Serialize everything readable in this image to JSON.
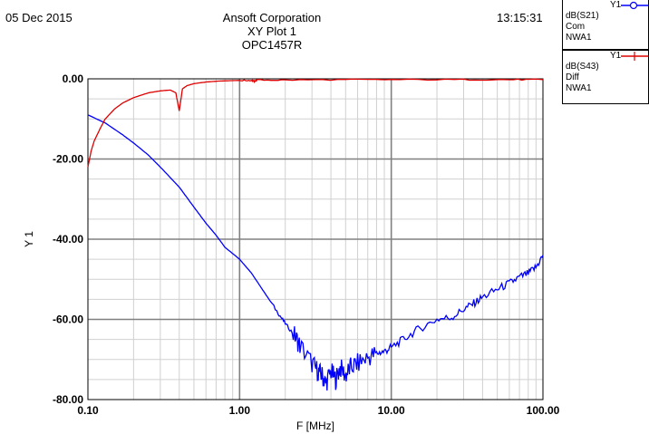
{
  "header": {
    "date": "05 Dec 2015",
    "title_lines": [
      "Ansoft Corporation",
      "XY Plot 1",
      "OPC1457R"
    ],
    "time": "13:15:31"
  },
  "legend": [
    {
      "axis": "Y1",
      "lines": [
        "dB(S21)",
        "Com",
        "NWA1"
      ],
      "color": "#0000ff",
      "marker": "circle"
    },
    {
      "axis": "Y1",
      "lines": [
        "dB(S43)",
        "Diff",
        "NWA1"
      ],
      "color": "#dd0000",
      "marker": "cross"
    }
  ],
  "chart_data": {
    "type": "line",
    "x_scale": "log",
    "xlabel": "F [MHz]",
    "ylabel": "Y 1",
    "xlim": [
      0.1,
      100
    ],
    "ylim": [
      -80,
      0
    ],
    "x_ticks": [
      "0.10",
      "1.00",
      "10.00",
      "100.00"
    ],
    "y_ticks": [
      "0.00",
      "-20.00",
      "-40.00",
      "-60.00",
      "-80.00"
    ],
    "grid": true,
    "series": [
      {
        "name": "dB(S21) Com NWA1",
        "color": "#0000ff",
        "points": [
          [
            0.1,
            -9
          ],
          [
            0.13,
            -11
          ],
          [
            0.17,
            -14
          ],
          [
            0.2,
            -16
          ],
          [
            0.25,
            -19
          ],
          [
            0.3,
            -22
          ],
          [
            0.4,
            -27
          ],
          [
            0.5,
            -32
          ],
          [
            0.6,
            -36
          ],
          [
            0.7,
            -39
          ],
          [
            0.8,
            -42
          ],
          [
            1.0,
            -45
          ],
          [
            1.2,
            -48.5
          ],
          [
            1.5,
            -54
          ],
          [
            1.8,
            -58.5
          ],
          [
            2.0,
            -61
          ],
          [
            2.3,
            -64
          ],
          [
            2.5,
            -66.5
          ],
          [
            3.0,
            -71
          ],
          [
            3.3,
            -73
          ],
          [
            3.5,
            -74
          ],
          [
            3.7,
            -76
          ],
          [
            4.0,
            -73
          ],
          [
            4.3,
            -75
          ],
          [
            4.6,
            -72
          ],
          [
            5.0,
            -74
          ],
          [
            5.4,
            -72
          ],
          [
            6.0,
            -71
          ],
          [
            7.0,
            -69.5
          ],
          [
            8.0,
            -68.5
          ],
          [
            9.0,
            -68
          ],
          [
            10.0,
            -67
          ],
          [
            12.0,
            -65
          ],
          [
            15.0,
            -62.5
          ],
          [
            20.0,
            -60
          ],
          [
            25.0,
            -59.5
          ],
          [
            30.0,
            -57.5
          ],
          [
            35.0,
            -56
          ],
          [
            40.0,
            -54.5
          ],
          [
            50.0,
            -52.5
          ],
          [
            60.0,
            -51
          ],
          [
            70.0,
            -49.5
          ],
          [
            80.0,
            -48.5
          ],
          [
            90.0,
            -47
          ],
          [
            100.0,
            -44
          ]
        ]
      },
      {
        "name": "dB(S43) Diff NWA1",
        "color": "#dd0000",
        "points": [
          [
            0.1,
            -22
          ],
          [
            0.105,
            -18
          ],
          [
            0.11,
            -15.5
          ],
          [
            0.12,
            -12.5
          ],
          [
            0.13,
            -10
          ],
          [
            0.15,
            -7.5
          ],
          [
            0.17,
            -6
          ],
          [
            0.2,
            -4.7
          ],
          [
            0.25,
            -3.5
          ],
          [
            0.3,
            -3
          ],
          [
            0.35,
            -2.8
          ],
          [
            0.38,
            -3.5
          ],
          [
            0.4,
            -8
          ],
          [
            0.42,
            -2.5
          ],
          [
            0.45,
            -1.7
          ],
          [
            0.5,
            -1.2
          ],
          [
            0.6,
            -0.8
          ],
          [
            0.7,
            -0.6
          ],
          [
            0.8,
            -0.5
          ],
          [
            1.0,
            -0.4
          ],
          [
            1.2,
            -0.4
          ],
          [
            1.25,
            -0.6
          ],
          [
            1.3,
            -0.3
          ],
          [
            2.0,
            -0.3
          ],
          [
            5.0,
            -0.2
          ],
          [
            10.0,
            -0.2
          ],
          [
            30.0,
            -0.2
          ],
          [
            60.0,
            -0.2
          ],
          [
            100.0,
            -0.2
          ]
        ]
      }
    ]
  }
}
